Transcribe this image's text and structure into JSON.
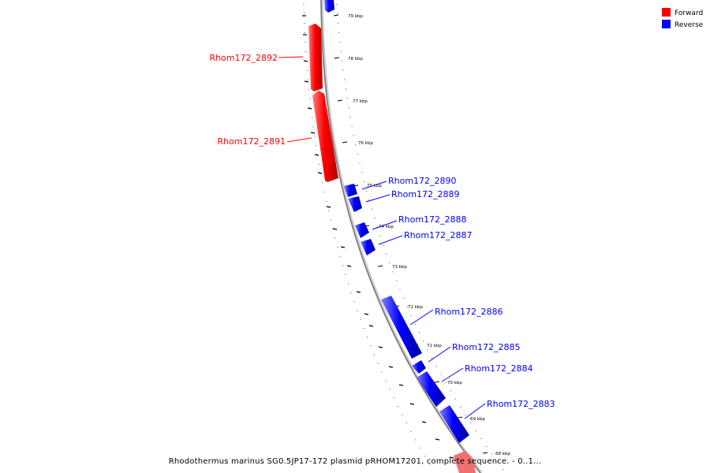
{
  "legend": {
    "items": [
      {
        "label": "Forward",
        "color": "#ff0000"
      },
      {
        "label": "Reverse",
        "color": "#0000ff"
      }
    ]
  },
  "caption": "Rhodothermus marinus SG0.5JP17-172 plasmid pRHOM17201, complete sequence. - 0..1...",
  "colors": {
    "forward": "#ff0000",
    "reverse": "#0000ff",
    "backbone": "#888888"
  },
  "ticks": [
    {
      "label": "79 kbp"
    },
    {
      "label": "78 kbp"
    },
    {
      "label": "77 kbp"
    },
    {
      "label": "76 kbp"
    },
    {
      "label": "75 kbp"
    },
    {
      "label": "74 kbp"
    },
    {
      "label": "73 kbp"
    },
    {
      "label": "72 kbp"
    },
    {
      "label": "71 kbp"
    },
    {
      "label": "70 kbp"
    },
    {
      "label": "69 kbp"
    },
    {
      "label": "68 kbp"
    }
  ],
  "genes": [
    {
      "name": "Rhom172_2892",
      "strand": "forward"
    },
    {
      "name": "Rhom172_2891",
      "strand": "forward"
    },
    {
      "name": "Rhom172_2890",
      "strand": "reverse"
    },
    {
      "name": "Rhom172_2889",
      "strand": "reverse"
    },
    {
      "name": "Rhom172_2888",
      "strand": "reverse"
    },
    {
      "name": "Rhom172_2887",
      "strand": "reverse"
    },
    {
      "name": "Rhom172_2886",
      "strand": "reverse"
    },
    {
      "name": "Rhom172_2885",
      "strand": "reverse"
    },
    {
      "name": "Rhom172_2884",
      "strand": "reverse"
    },
    {
      "name": "Rhom172_2883",
      "strand": "reverse"
    }
  ]
}
